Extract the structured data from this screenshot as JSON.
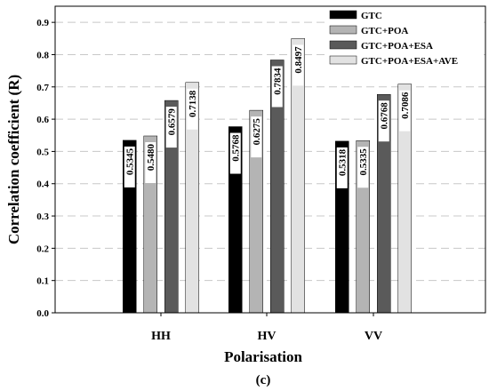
{
  "chart_data": {
    "type": "bar",
    "categories": [
      "HH",
      "HV",
      "VV"
    ],
    "series": [
      {
        "name": "GTC",
        "values": [
          0.5345,
          0.5768,
          0.5318
        ],
        "color": "#000000"
      },
      {
        "name": "GTC+POA",
        "values": [
          0.548,
          0.6275,
          0.5335
        ],
        "color": "#b4b4b4"
      },
      {
        "name": "GTC+POA+ESA",
        "values": [
          0.6579,
          0.7834,
          0.6768
        ],
        "color": "#5a5a5a"
      },
      {
        "name": "GTC+POA+ESA+AVE",
        "values": [
          0.7138,
          0.8497,
          0.7086
        ],
        "color": "#e2e2e2"
      }
    ],
    "data_labels": [
      [
        "0.5345",
        "0.5768",
        "0.5318"
      ],
      [
        "0.5480",
        "0.6275",
        "0.5335"
      ],
      [
        "0.6579",
        "0.7834",
        "0.6768"
      ],
      [
        "0.7138",
        "0.8497",
        "0.7086"
      ]
    ],
    "yticks": [
      "0.0",
      "0.1",
      "0.2",
      "0.3",
      "0.4",
      "0.5",
      "0.6",
      "0.7",
      "0.8",
      "0.9"
    ],
    "xlabel": "Polarisation",
    "ylabel": "Correlation coefficient (R)",
    "ylim": [
      0,
      0.95
    ],
    "grid": "horizontal dashed",
    "legend_position": "top-right"
  },
  "panel_label": "(c)"
}
